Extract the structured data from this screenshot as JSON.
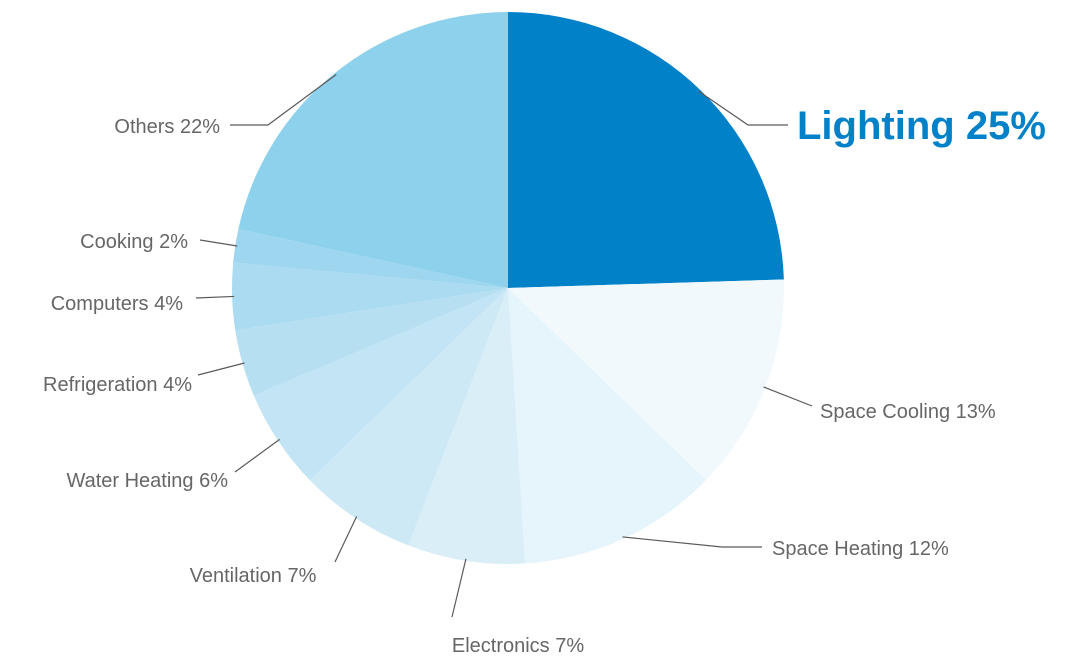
{
  "chart_data": {
    "type": "pie",
    "title": "",
    "slices": [
      {
        "label": "Lighting 25%",
        "category": "Lighting",
        "value": 25,
        "color": "#0081c8",
        "highlight": true
      },
      {
        "label": "Space Cooling 13%",
        "category": "Space Cooling",
        "value": 13,
        "color": "#f2f9fd"
      },
      {
        "label": "Space Heating 12%",
        "category": "Space Heating",
        "value": 12,
        "color": "#e6f4fb"
      },
      {
        "label": "Electronics 7%",
        "category": "Electronics",
        "value": 7,
        "color": "#daeef8"
      },
      {
        "label": "Ventilation 7%",
        "category": "Ventilation",
        "value": 7,
        "color": "#cee9f6"
      },
      {
        "label": "Water Heating 6%",
        "category": "Water Heating",
        "value": 6,
        "color": "#c2e4f4"
      },
      {
        "label": "Refrigeration 4%",
        "category": "Refrigeration",
        "value": 4,
        "color": "#b6e0f2"
      },
      {
        "label": "Computers 4%",
        "category": "Computers",
        "value": 4,
        "color": "#aadbf0"
      },
      {
        "label": "Cooking 2%",
        "category": "Cooking",
        "value": 2,
        "color": "#9dd6ee"
      },
      {
        "label": "Others 22%",
        "category": "Others",
        "value": 22,
        "color": "#8dd1ec"
      }
    ],
    "start_angle": "12 o'clock",
    "direction": "clockwise",
    "highlight_color": "#0081c8",
    "label_color": "#666666",
    "leader_color": "#5a5a5a"
  }
}
